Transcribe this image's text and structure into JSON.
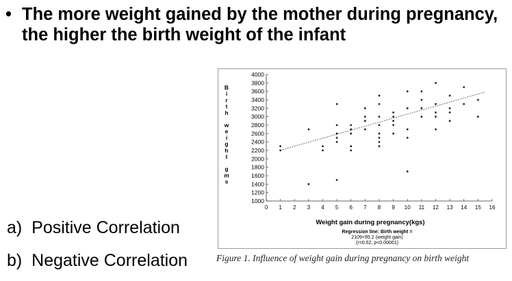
{
  "slide": {
    "bullet_symbol": "•",
    "bullet_text": "The more weight gained by the mother during pregnancy, the higher the birth weight of the infant",
    "options": [
      {
        "marker": "a)",
        "text": "Positive Correlation"
      },
      {
        "marker": "b)",
        "text": "Negative Correlation"
      }
    ]
  },
  "figure": {
    "caption": "Figure 1. Influence of weight gain during pregnancy on birth weight",
    "regression_text": [
      "Regression line: Birth weight =",
      "2109+95.2 (weight gain)",
      "(r=0.52, p<0.00001)"
    ]
  },
  "chart_data": {
    "type": "scatter",
    "xlabel": "Weight gain during pregnancy(kgs)",
    "ylabel": "Birth weight gms",
    "xlim": [
      0,
      16
    ],
    "ylim": [
      1000,
      4000
    ],
    "x_ticks": [
      0,
      1,
      2,
      3,
      4,
      5,
      6,
      7,
      8,
      9,
      10,
      11,
      12,
      13,
      14,
      15,
      16
    ],
    "y_ticks": [
      1000,
      1200,
      1400,
      1600,
      1800,
      2000,
      2200,
      2400,
      2600,
      2800,
      3000,
      3200,
      3400,
      3600,
      3800,
      4000
    ],
    "grid": false,
    "regression": {
      "intercept": 2109,
      "slope": 95.2
    },
    "points": [
      {
        "x": 1,
        "y": 2200
      },
      {
        "x": 1,
        "y": 2300
      },
      {
        "x": 3,
        "y": 2700
      },
      {
        "x": 3,
        "y": 1400
      },
      {
        "x": 4,
        "y": 2200
      },
      {
        "x": 4,
        "y": 2300
      },
      {
        "x": 5,
        "y": 2400
      },
      {
        "x": 5,
        "y": 2500
      },
      {
        "x": 5,
        "y": 2600
      },
      {
        "x": 5,
        "y": 2800
      },
      {
        "x": 5,
        "y": 3300
      },
      {
        "x": 5,
        "y": 1500
      },
      {
        "x": 6,
        "y": 2200
      },
      {
        "x": 6,
        "y": 2300
      },
      {
        "x": 6,
        "y": 2600
      },
      {
        "x": 6,
        "y": 2700
      },
      {
        "x": 6,
        "y": 2800
      },
      {
        "x": 7,
        "y": 2700
      },
      {
        "x": 7,
        "y": 2900
      },
      {
        "x": 7,
        "y": 3000
      },
      {
        "x": 7,
        "y": 3200
      },
      {
        "x": 8,
        "y": 2300
      },
      {
        "x": 8,
        "y": 2400
      },
      {
        "x": 8,
        "y": 2500
      },
      {
        "x": 8,
        "y": 2600
      },
      {
        "x": 8,
        "y": 2800
      },
      {
        "x": 8,
        "y": 3000
      },
      {
        "x": 8,
        "y": 3300
      },
      {
        "x": 8,
        "y": 3500
      },
      {
        "x": 9,
        "y": 2600
      },
      {
        "x": 9,
        "y": 2800
      },
      {
        "x": 9,
        "y": 2900
      },
      {
        "x": 9,
        "y": 3000
      },
      {
        "x": 9,
        "y": 3100
      },
      {
        "x": 10,
        "y": 2500
      },
      {
        "x": 10,
        "y": 2700
      },
      {
        "x": 10,
        "y": 3200
      },
      {
        "x": 10,
        "y": 3600
      },
      {
        "x": 10,
        "y": 1700
      },
      {
        "x": 11,
        "y": 3000
      },
      {
        "x": 11,
        "y": 3200
      },
      {
        "x": 11,
        "y": 3400
      },
      {
        "x": 11,
        "y": 3600
      },
      {
        "x": 12,
        "y": 2700
      },
      {
        "x": 12,
        "y": 3000
      },
      {
        "x": 12,
        "y": 3100
      },
      {
        "x": 12,
        "y": 3300
      },
      {
        "x": 12,
        "y": 3800
      },
      {
        "x": 13,
        "y": 2900
      },
      {
        "x": 13,
        "y": 3100
      },
      {
        "x": 13,
        "y": 3200
      },
      {
        "x": 13,
        "y": 3500
      },
      {
        "x": 14,
        "y": 3300
      },
      {
        "x": 14,
        "y": 3700
      },
      {
        "x": 15,
        "y": 3000
      },
      {
        "x": 15,
        "y": 3400
      }
    ]
  }
}
